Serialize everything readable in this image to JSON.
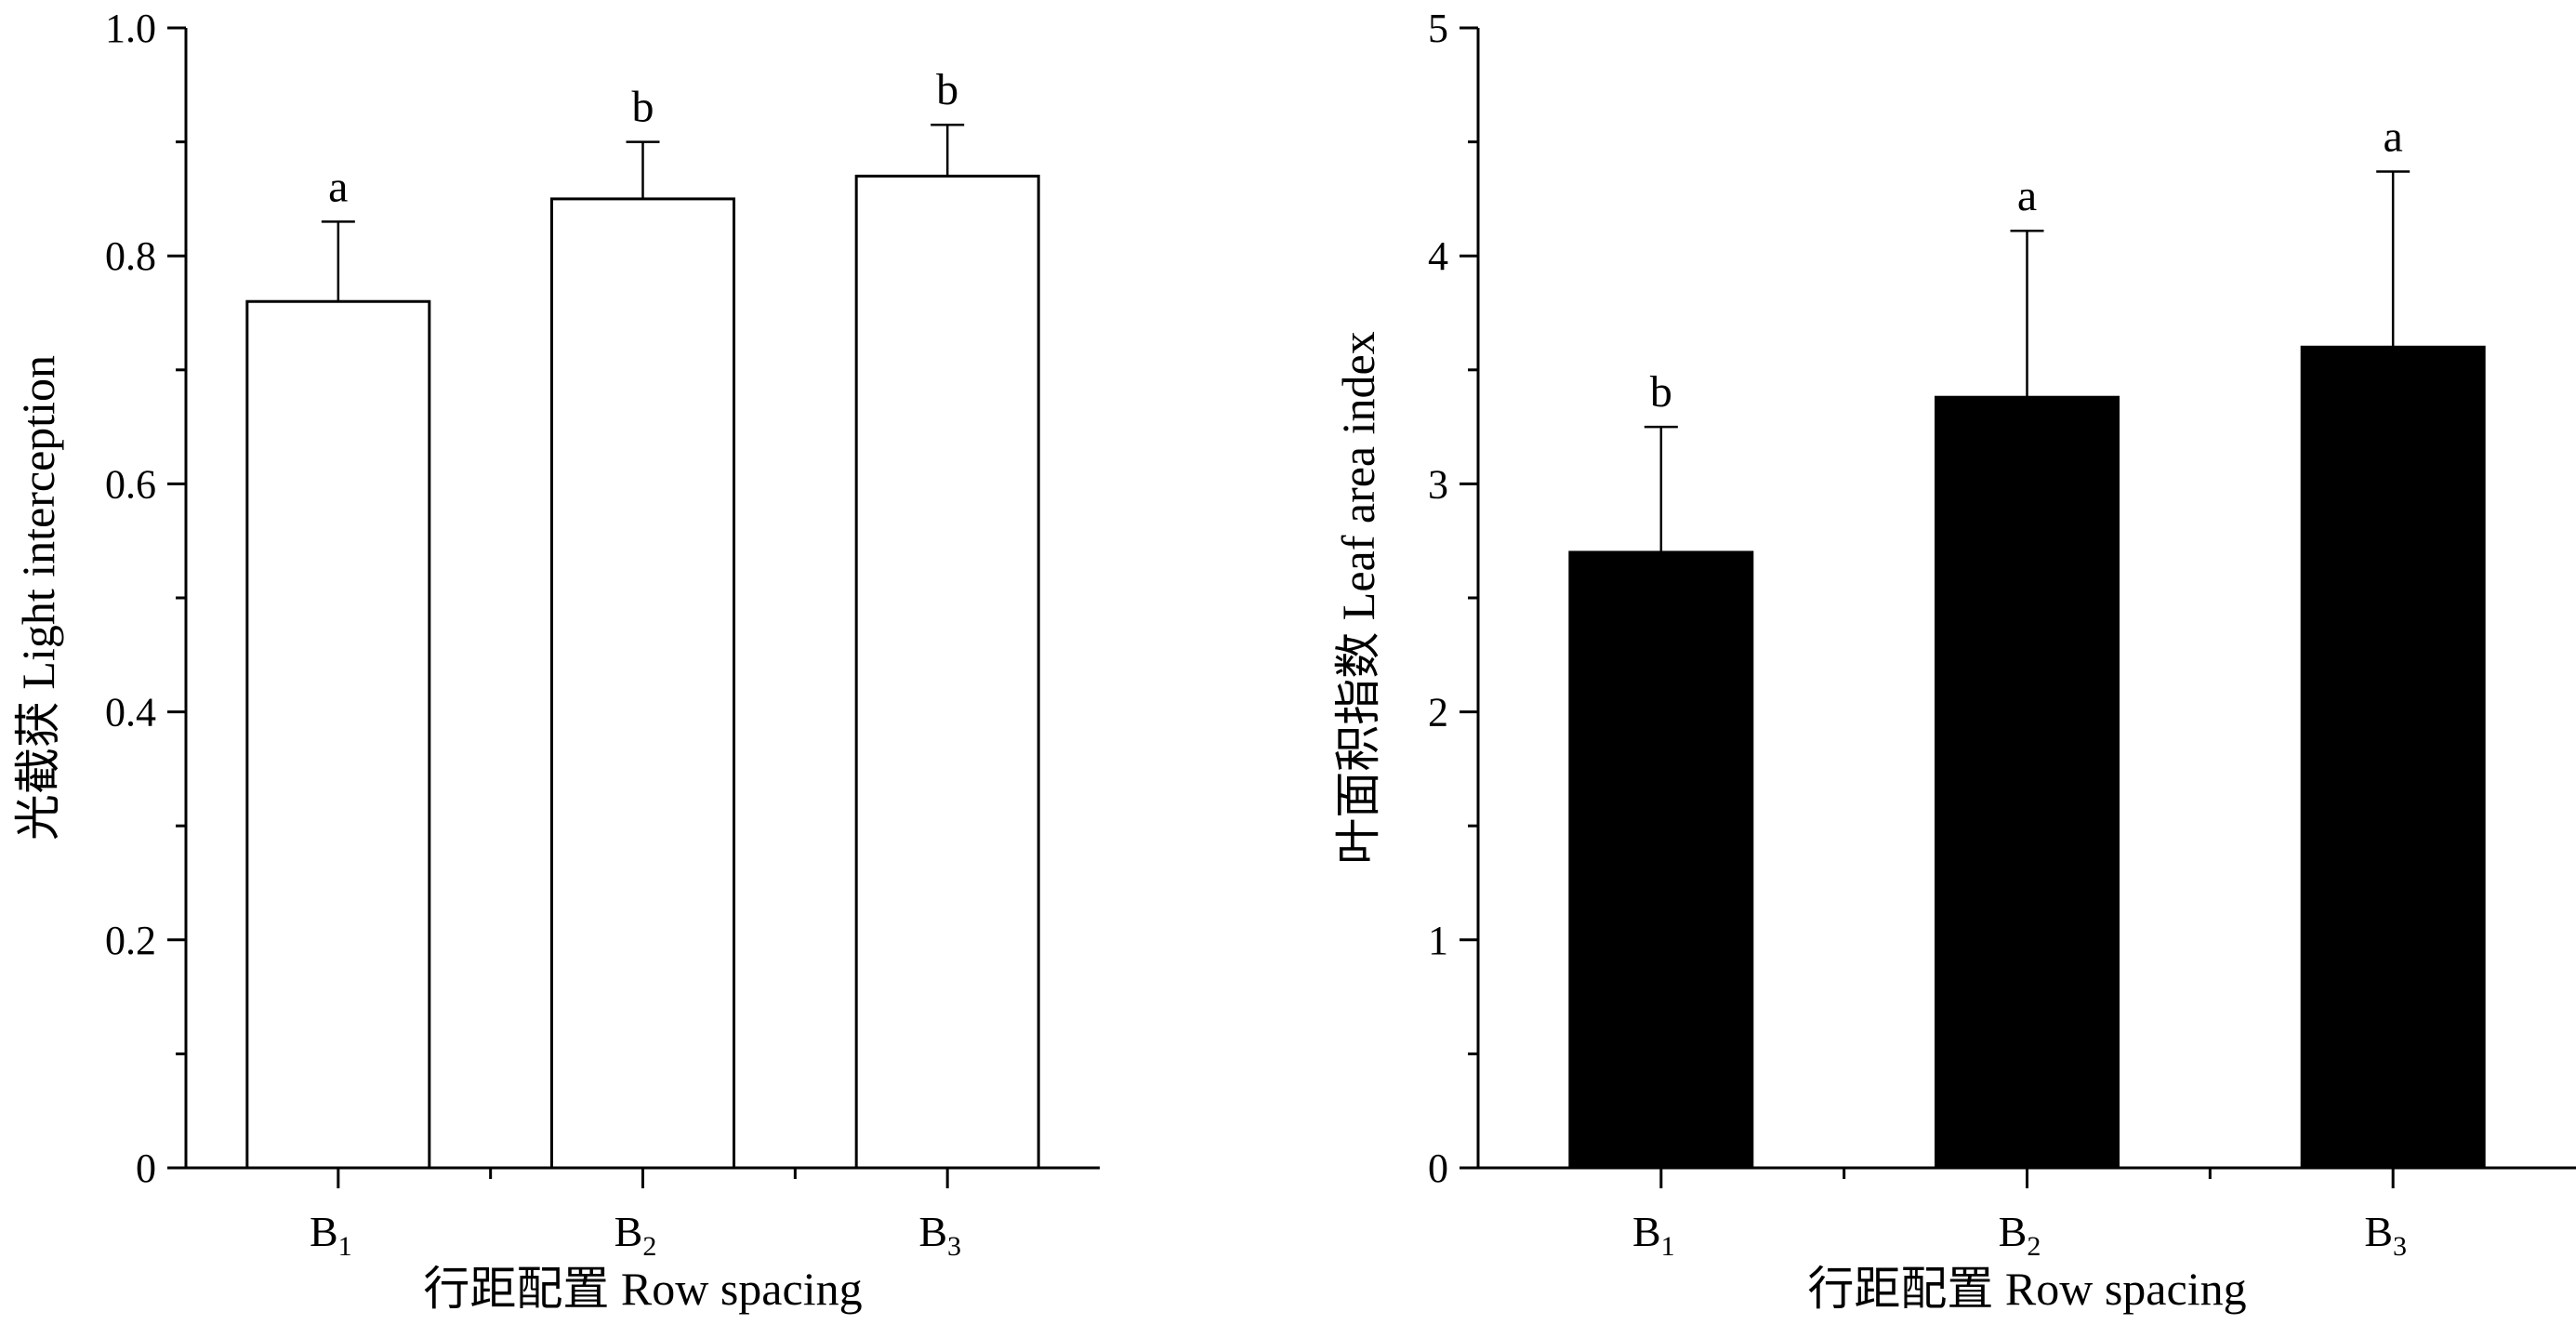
{
  "chart_data": [
    {
      "type": "bar",
      "categories": [
        {
          "main": "B",
          "sub": "1"
        },
        {
          "main": "B",
          "sub": "2"
        },
        {
          "main": "B",
          "sub": "3"
        }
      ],
      "values": [
        0.76,
        0.85,
        0.87
      ],
      "errors": [
        0.07,
        0.05,
        0.045
      ],
      "significance": [
        "a",
        "b",
        "b"
      ],
      "bar_fill": "#ffffff",
      "bar_stroke": "#000000",
      "ylim": [
        0,
        1.0
      ],
      "yticks": [
        0,
        0.2,
        0.4,
        0.6,
        0.8,
        1.0
      ],
      "ytick_labels": [
        "0",
        "0.2",
        "0.4",
        "0.6",
        "0.8",
        "1.0"
      ],
      "ylabel": "光截获  Light interception",
      "xlabel": "行距配置  Row spacing"
    },
    {
      "type": "bar",
      "categories": [
        {
          "main": "B",
          "sub": "1"
        },
        {
          "main": "B",
          "sub": "2"
        },
        {
          "main": "B",
          "sub": "3"
        }
      ],
      "values": [
        2.7,
        3.38,
        3.6
      ],
      "errors": [
        0.55,
        0.73,
        0.77
      ],
      "significance": [
        "b",
        "a",
        "a"
      ],
      "bar_fill": "#000000",
      "bar_stroke": "#000000",
      "ylim": [
        0,
        5
      ],
      "yticks": [
        0,
        1,
        2,
        3,
        4,
        5
      ],
      "ytick_labels": [
        "0",
        "1",
        "2",
        "3",
        "4",
        "5"
      ],
      "ylabel": "叶面积指数  Leaf area index",
      "xlabel": "行距配置  Row spacing"
    }
  ]
}
